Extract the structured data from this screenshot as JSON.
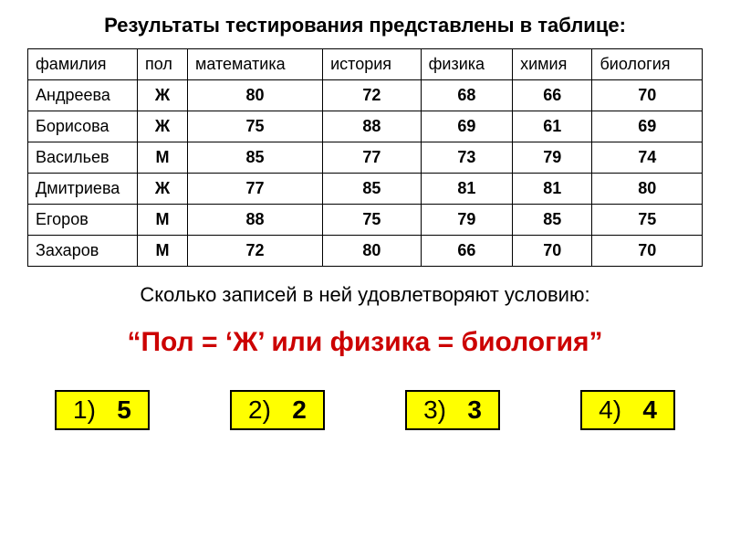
{
  "title": "Результаты тестирования представлены в таблице:",
  "table": {
    "columns": [
      "фамилия",
      "пол",
      "математика",
      "история",
      "физика",
      "химия",
      "биология"
    ],
    "rows": [
      [
        "Андреева",
        "Ж",
        "80",
        "72",
        "68",
        "66",
        "70"
      ],
      [
        "Борисова",
        "Ж",
        "75",
        "88",
        "69",
        "61",
        "69"
      ],
      [
        "Васильев",
        "М",
        "85",
        "77",
        "73",
        "79",
        "74"
      ],
      [
        "Дмитриева",
        "Ж",
        "77",
        "85",
        "81",
        "81",
        "80"
      ],
      [
        "Егоров",
        "М",
        "88",
        "75",
        "79",
        "85",
        "75"
      ],
      [
        "Захаров",
        "М",
        "72",
        "80",
        "66",
        "70",
        "70"
      ]
    ]
  },
  "question": "Сколько записей в ней удовлетворяют условию:",
  "condition": "“Пол = ‘Ж’ или физика = биология”",
  "answers": [
    {
      "num": "1)",
      "val": "5"
    },
    {
      "num": "2)",
      "val": "2"
    },
    {
      "num": "3)",
      "val": "3"
    },
    {
      "num": "4)",
      "val": "4"
    }
  ],
  "colors": {
    "condition_color": "#cc0000",
    "answer_bg": "#ffff00",
    "border": "#000000",
    "text": "#000000"
  },
  "fonts": {
    "title_size": 22,
    "table_size": 18,
    "question_size": 22,
    "condition_size": 30,
    "answer_size": 28
  }
}
